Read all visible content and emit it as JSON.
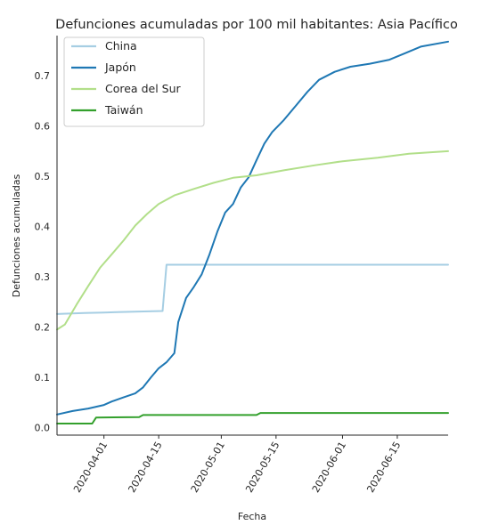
{
  "chart_data": {
    "type": "line",
    "title": "Defunciones acumuladas por 100 mil habitantes: Asia Pacífico",
    "xlabel": "Fecha",
    "ylabel": "Defunciones acumuladas",
    "x_range": [
      "2020-03-20",
      "2020-06-28"
    ],
    "ylim": [
      -0.015,
      0.78
    ],
    "x_ticks": [
      "2020-04-01",
      "2020-04-15",
      "2020-05-01",
      "2020-05-15",
      "2020-06-01",
      "2020-06-15"
    ],
    "y_ticks": [
      "0.0",
      "0.1",
      "0.2",
      "0.3",
      "0.4",
      "0.5",
      "0.6",
      "0.7"
    ],
    "grid": false,
    "legend_position": "top-left",
    "series": [
      {
        "name": "China",
        "color": "#a6cee3",
        "points": [
          [
            "2020-03-20",
            0.226
          ],
          [
            "2020-03-27",
            0.228
          ],
          [
            "2020-04-01",
            0.229
          ],
          [
            "2020-04-10",
            0.231
          ],
          [
            "2020-04-16",
            0.232
          ],
          [
            "2020-04-17",
            0.324
          ],
          [
            "2020-05-15",
            0.324
          ],
          [
            "2020-06-28",
            0.324
          ]
        ]
      },
      {
        "name": "Japón",
        "color": "#1f78b4",
        "points": [
          [
            "2020-03-20",
            0.026
          ],
          [
            "2020-03-24",
            0.033
          ],
          [
            "2020-03-28",
            0.038
          ],
          [
            "2020-04-01",
            0.045
          ],
          [
            "2020-04-03",
            0.052
          ],
          [
            "2020-04-06",
            0.06
          ],
          [
            "2020-04-09",
            0.068
          ],
          [
            "2020-04-11",
            0.08
          ],
          [
            "2020-04-13",
            0.1
          ],
          [
            "2020-04-15",
            0.118
          ],
          [
            "2020-04-17",
            0.13
          ],
          [
            "2020-04-19",
            0.148
          ],
          [
            "2020-04-20",
            0.21
          ],
          [
            "2020-04-22",
            0.258
          ],
          [
            "2020-04-24",
            0.28
          ],
          [
            "2020-04-26",
            0.305
          ],
          [
            "2020-04-28",
            0.345
          ],
          [
            "2020-04-30",
            0.39
          ],
          [
            "2020-05-02",
            0.428
          ],
          [
            "2020-05-04",
            0.445
          ],
          [
            "2020-05-06",
            0.478
          ],
          [
            "2020-05-08",
            0.498
          ],
          [
            "2020-05-10",
            0.532
          ],
          [
            "2020-05-12",
            0.565
          ],
          [
            "2020-05-14",
            0.588
          ],
          [
            "2020-05-17",
            0.612
          ],
          [
            "2020-05-20",
            0.64
          ],
          [
            "2020-05-23",
            0.668
          ],
          [
            "2020-05-26",
            0.692
          ],
          [
            "2020-05-30",
            0.708
          ],
          [
            "2020-06-03",
            0.718
          ],
          [
            "2020-06-08",
            0.724
          ],
          [
            "2020-06-13",
            0.732
          ],
          [
            "2020-06-17",
            0.745
          ],
          [
            "2020-06-21",
            0.758
          ],
          [
            "2020-06-28",
            0.768
          ]
        ]
      },
      {
        "name": "Corea del Sur",
        "color": "#b2df8a",
        "points": [
          [
            "2020-03-20",
            0.195
          ],
          [
            "2020-03-22",
            0.205
          ],
          [
            "2020-03-25",
            0.245
          ],
          [
            "2020-03-28",
            0.282
          ],
          [
            "2020-03-31",
            0.318
          ],
          [
            "2020-04-03",
            0.345
          ],
          [
            "2020-04-06",
            0.372
          ],
          [
            "2020-04-09",
            0.402
          ],
          [
            "2020-04-12",
            0.425
          ],
          [
            "2020-04-15",
            0.445
          ],
          [
            "2020-04-19",
            0.462
          ],
          [
            "2020-04-24",
            0.475
          ],
          [
            "2020-04-29",
            0.487
          ],
          [
            "2020-05-04",
            0.497
          ],
          [
            "2020-05-10",
            0.502
          ],
          [
            "2020-05-17",
            0.512
          ],
          [
            "2020-05-25",
            0.522
          ],
          [
            "2020-06-01",
            0.53
          ],
          [
            "2020-06-10",
            0.537
          ],
          [
            "2020-06-18",
            0.545
          ],
          [
            "2020-06-28",
            0.55
          ]
        ]
      },
      {
        "name": "Taiwán",
        "color": "#33a02c",
        "points": [
          [
            "2020-03-20",
            0.008
          ],
          [
            "2020-03-29",
            0.008
          ],
          [
            "2020-03-30",
            0.02
          ],
          [
            "2020-04-10",
            0.021
          ],
          [
            "2020-04-11",
            0.025
          ],
          [
            "2020-05-10",
            0.025
          ],
          [
            "2020-05-11",
            0.029
          ],
          [
            "2020-06-28",
            0.029
          ]
        ]
      }
    ]
  }
}
